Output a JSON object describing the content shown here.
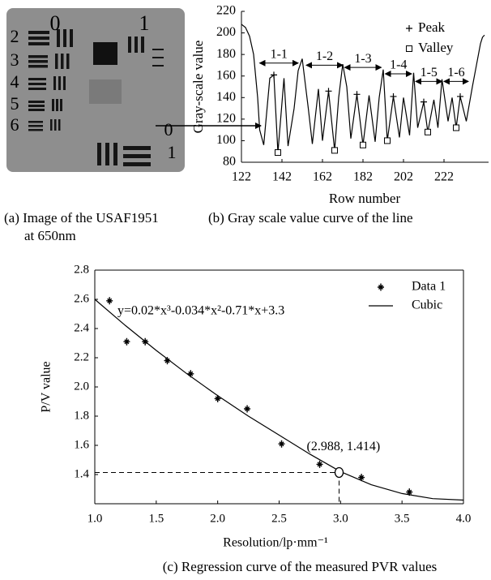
{
  "image_panel": {
    "caption": [
      "(a) Image of the USAF1951",
      "at 650nm"
    ],
    "labels": [
      "0",
      "1",
      "2",
      "3",
      "4",
      "5",
      "6",
      "0",
      "1"
    ]
  },
  "chart_data": [
    {
      "type": "line",
      "caption": "(b) Gray scale value curve of the line",
      "x_label": "Row number",
      "y_label": "Gray-scale value",
      "xlim": [
        122,
        244
      ],
      "ylim": [
        80,
        220
      ],
      "xticks": [
        122,
        142,
        162,
        182,
        202,
        222
      ],
      "yticks": [
        80,
        100,
        120,
        140,
        160,
        180,
        200,
        220
      ],
      "box": false,
      "series": [
        {
          "marker": "line",
          "color": "#000000",
          "x": [
            122,
            124,
            126,
            128,
            130,
            131,
            133,
            136,
            138,
            140,
            143,
            145,
            148,
            150,
            152,
            155,
            157,
            160,
            162,
            165,
            168,
            170,
            172,
            174,
            176,
            179,
            182,
            185,
            188,
            190,
            192,
            194,
            197,
            200,
            202,
            205,
            207,
            209,
            212,
            214,
            217,
            219,
            221,
            224,
            226,
            228,
            230,
            233,
            236,
            238,
            240,
            241,
            242
          ],
          "values": [
            208,
            205,
            197,
            180,
            140,
            110,
            96,
            158,
            161,
            89,
            158,
            95,
            130,
            165,
            176,
            130,
            97,
            148,
            100,
            146,
            91,
            140,
            171,
            150,
            102,
            143,
            96,
            142,
            99,
            140,
            166,
            100,
            141,
            103,
            140,
            105,
            163,
            112,
            136,
            108,
            138,
            112,
            157,
            118,
            140,
            112,
            141,
            118,
            150,
            170,
            190,
            196,
            198
          ]
        },
        {
          "name": "Peak",
          "marker": "plus",
          "color": "#000000",
          "x": [
            138,
            165,
            179,
            197,
            212,
            230
          ],
          "values": [
            161,
            146,
            143,
            141,
            136,
            141
          ]
        },
        {
          "name": "Valley",
          "marker": "square",
          "color": "#000000",
          "x": [
            140,
            168,
            182,
            194,
            214,
            228
          ],
          "values": [
            89,
            91,
            96,
            100,
            108,
            112
          ]
        }
      ],
      "annotations": [
        {
          "text": "1-1",
          "x": [
            131,
            150
          ],
          "y": 172
        },
        {
          "text": "1-2",
          "x": [
            154,
            172
          ],
          "y": 170
        },
        {
          "text": "1-3",
          "x": [
            173,
            191
          ],
          "y": 168
        },
        {
          "text": "1-4",
          "x": [
            193,
            206
          ],
          "y": 162
        },
        {
          "text": "1-5",
          "x": [
            208,
            221
          ],
          "y": 155
        },
        {
          "text": "1-6",
          "x": [
            222,
            234
          ],
          "y": 155
        }
      ]
    },
    {
      "type": "scatter",
      "caption": "(c) Regression curve of the measured PVR values",
      "x_label": "Resolution/lp·mm⁻¹",
      "y_label": "P/V value",
      "xlim": [
        1,
        4
      ],
      "ylim": [
        1.2,
        2.8
      ],
      "xticks": [
        {
          "value": 1,
          "label": "1.0"
        },
        1.5,
        {
          "value": 2,
          "label": "2.0"
        },
        2.5,
        {
          "value": 3,
          "label": "3.0"
        },
        3.5,
        {
          "value": 4,
          "label": "4.0"
        }
      ],
      "yticks": [
        1.4,
        1.6,
        1.8,
        {
          "value": 2,
          "label": "2.0"
        },
        2.2,
        2.4,
        2.6,
        2.8
      ],
      "box": true,
      "equation": "y=0.02*x³-0.034*x²-0.71*x+3.3",
      "series": [
        {
          "name": "Data 1",
          "marker": "star",
          "color": "#000000",
          "x": [
            1.12,
            1.26,
            1.41,
            1.59,
            1.78,
            2.0,
            2.24,
            2.52,
            2.83,
            3.17,
            3.56
          ],
          "values": [
            2.59,
            2.31,
            2.31,
            2.18,
            2.09,
            1.92,
            1.85,
            1.61,
            1.47,
            1.38,
            1.28
          ]
        },
        {
          "name": "Cubic",
          "marker": "line",
          "color": "#000000",
          "x": [
            1.0,
            1.25,
            1.5,
            1.75,
            2.0,
            2.25,
            2.5,
            2.75,
            3.0,
            3.25,
            3.5,
            3.75,
            4.0
          ],
          "values": [
            2.6,
            2.42,
            2.25,
            2.09,
            1.94,
            1.8,
            1.67,
            1.54,
            1.42,
            1.33,
            1.27,
            1.235,
            1.225
          ]
        }
      ],
      "highlight": {
        "x": 2.988,
        "y": 1.414,
        "label": "(2.988, 1.414)"
      }
    }
  ]
}
